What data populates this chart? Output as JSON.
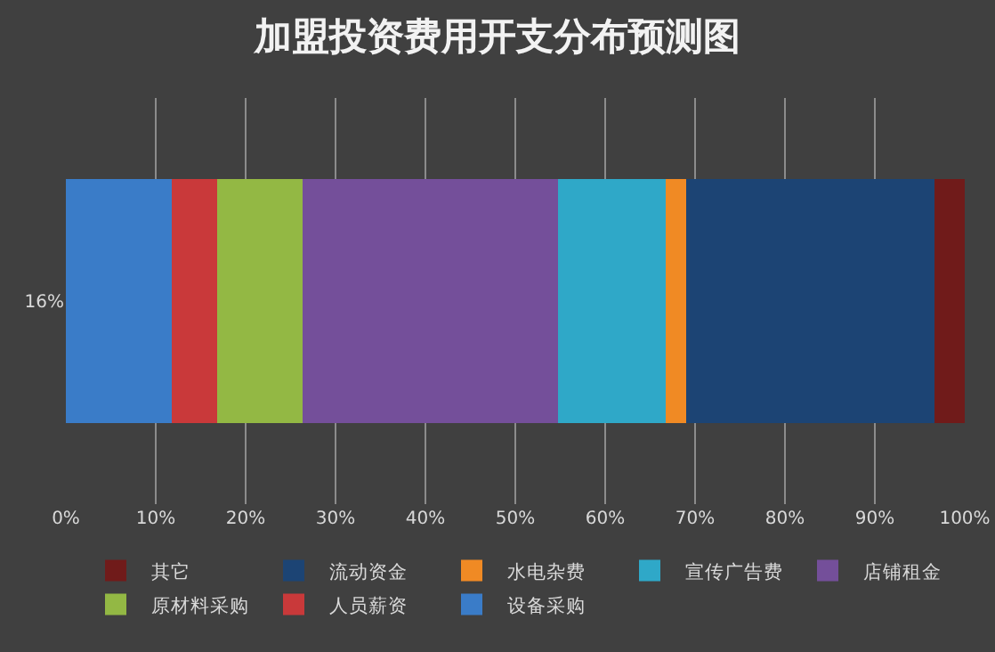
{
  "chart_data": {
    "type": "bar",
    "title": "加盟投资费用开支分布预测图",
    "orientation": "horizontal",
    "stacked": true,
    "categories": [
      "16%"
    ],
    "series": [
      {
        "name": "设备采购",
        "color": "#3a7cc8",
        "values": [
          11.8
        ]
      },
      {
        "name": "人员薪资",
        "color": "#c9393a",
        "values": [
          5
        ]
      },
      {
        "name": "原材料采购",
        "color": "#93b844",
        "values": [
          9.5
        ]
      },
      {
        "name": "店铺租金",
        "color": "#744f9a",
        "values": [
          28.5
        ]
      },
      {
        "name": "宣传广告费",
        "color": "#2fa8c8",
        "values": [
          11.9
        ]
      },
      {
        "name": "水电杂费",
        "color": "#f08a24",
        "values": [
          2.3
        ]
      },
      {
        "name": "流动资金",
        "color": "#1c4474",
        "values": [
          27.6
        ]
      },
      {
        "name": "其它",
        "color": "#701b1a",
        "values": [
          3.4
        ]
      }
    ],
    "xlim": [
      0,
      100
    ],
    "xticks": [
      {
        "value": 0,
        "label": "0%"
      },
      {
        "value": 10,
        "label": "10%"
      },
      {
        "value": 20,
        "label": "20%"
      },
      {
        "value": 30,
        "label": "30%"
      },
      {
        "value": 40,
        "label": "40%"
      },
      {
        "value": 50,
        "label": "50%"
      },
      {
        "value": 60,
        "label": "60%"
      },
      {
        "value": 70,
        "label": "70%"
      },
      {
        "value": 80,
        "label": "80%"
      },
      {
        "value": 90,
        "label": "90%"
      },
      {
        "value": 100,
        "label": "100%"
      }
    ],
    "grid": "x",
    "legend": "bottom"
  }
}
